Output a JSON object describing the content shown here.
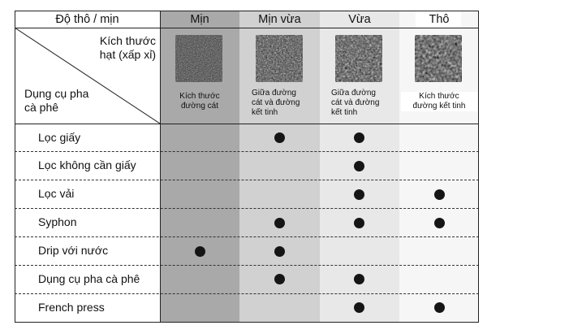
{
  "header": {
    "label": "Độ thô / mịn",
    "columns": [
      "Mịn",
      "Mịn vừa",
      "Vừa",
      "Thô"
    ]
  },
  "corner": {
    "top_line1": "Kích thước",
    "top_line2": "hạt (xấp xỉ)",
    "bottom_line1": "Dụng cụ pha",
    "bottom_line2": "cà phê"
  },
  "sizes": [
    {
      "lines": [
        "Kích thước",
        "đường cát"
      ]
    },
    {
      "lines": [
        "Giữa đường",
        "cát và đường",
        "kết tinh"
      ]
    },
    {
      "lines": [
        "Giữa đường",
        "cát và đường",
        "kết tinh"
      ]
    },
    {
      "lines": [
        "Kích thước",
        "đường kết tinh"
      ]
    }
  ],
  "colors": {
    "col_fine": "#a9a9a9",
    "col_medium_fine": "#d1d1d1",
    "col_medium": "#e8e8e8",
    "col_coarse": "#f6f6f6",
    "header_coarse": "#ffffff",
    "dot": "#151515"
  },
  "rows": [
    {
      "label": "Lọc giấy",
      "marks": [
        false,
        true,
        true,
        false
      ]
    },
    {
      "label": "Lọc không cần giấy",
      "marks": [
        false,
        false,
        true,
        false
      ]
    },
    {
      "label": "Lọc vải",
      "marks": [
        false,
        false,
        true,
        true
      ]
    },
    {
      "label": "Syphon",
      "marks": [
        false,
        true,
        true,
        true
      ]
    },
    {
      "label": "Drip với nước",
      "marks": [
        true,
        true,
        false,
        false
      ]
    },
    {
      "label": "Dụng cụ pha cà phê",
      "marks": [
        false,
        true,
        true,
        false
      ]
    },
    {
      "label": "French press",
      "marks": [
        false,
        false,
        true,
        true
      ]
    }
  ]
}
